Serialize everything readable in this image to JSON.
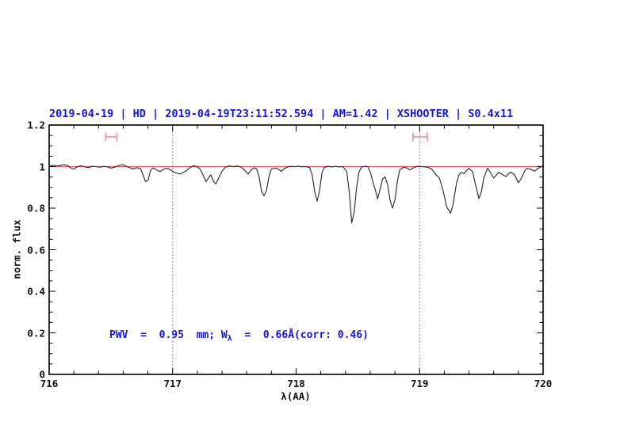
{
  "title": {
    "text": "2019-04-19 | HD | 2019-04-19T23:11:52.594 | AM=1.42 | XSHOOTER | S0.4x11",
    "color": "#1515dd"
  },
  "annotation": {
    "prefix": "PWV  =  0.95  mm; W",
    "subscript": "λ",
    "suffix": "  =  0.66Å(corr: 0.46)",
    "color": "#1515dd"
  },
  "axes": {
    "xlabel": "λ(AA)",
    "ylabel": "norm. flux",
    "x_ticks": [
      "716",
      "717",
      "718",
      "719",
      "720"
    ],
    "y_ticks": [
      "0",
      "0.2",
      "0.4",
      "0.6",
      "0.8",
      "1",
      "1.2"
    ],
    "x_minor_step": 0.2,
    "y_minor_step": 0.05
  },
  "chart_data": {
    "type": "line",
    "title": "2019-04-19 | HD | 2019-04-19T23:11:52.594 | AM=1.42 | XSHOOTER | S0.4x11",
    "xlabel": "λ(AA)",
    "ylabel": "norm. flux",
    "xlim": [
      716,
      720
    ],
    "ylim": [
      0,
      1.2
    ],
    "grid": false,
    "legend": "none",
    "colors": {
      "spectrum": "#262626",
      "continuum": "#e35d5d",
      "range_marker": "#f29a9a",
      "frame": "#000000",
      "dotted_line": "#3c3c3c"
    },
    "vlines": [
      {
        "x": 717,
        "style": "dotted"
      },
      {
        "x": 719,
        "style": "dotted"
      }
    ],
    "range_markers": {
      "y": 1.143,
      "cap_half_height": 0.021,
      "items": [
        {
          "x_min": 716.458,
          "x_max": 716.549
        },
        {
          "x_min": 718.947,
          "x_max": 719.063
        }
      ]
    },
    "series": [
      {
        "name": "continuum",
        "points": [
          [
            716.0,
            1.0
          ],
          [
            720.0,
            1.0
          ]
        ]
      },
      {
        "name": "spectrum",
        "points": [
          [
            716.0,
            1.004
          ],
          [
            716.03,
            1.006
          ],
          [
            716.06,
            1.003
          ],
          [
            716.09,
            1.006
          ],
          [
            716.12,
            1.01
          ],
          [
            716.15,
            1.005
          ],
          [
            716.18,
            0.992
          ],
          [
            716.2,
            0.988
          ],
          [
            716.23,
            1.0
          ],
          [
            716.26,
            1.004
          ],
          [
            716.29,
            0.998
          ],
          [
            716.32,
            0.995
          ],
          [
            716.35,
            1.002
          ],
          [
            716.38,
            1.0
          ],
          [
            716.41,
            0.997
          ],
          [
            716.44,
            1.001
          ],
          [
            716.47,
            0.999
          ],
          [
            716.5,
            0.993
          ],
          [
            716.53,
            0.997
          ],
          [
            716.56,
            1.004
          ],
          [
            716.59,
            1.01
          ],
          [
            716.62,
            1.003
          ],
          [
            716.65,
            0.995
          ],
          [
            716.68,
            0.989
          ],
          [
            716.71,
            0.995
          ],
          [
            716.74,
            0.99
          ],
          [
            716.76,
            0.96
          ],
          [
            716.78,
            0.928
          ],
          [
            716.8,
            0.933
          ],
          [
            716.82,
            0.98
          ],
          [
            716.84,
            0.994
          ],
          [
            716.86,
            0.988
          ],
          [
            716.88,
            0.98
          ],
          [
            716.9,
            0.977
          ],
          [
            716.92,
            0.985
          ],
          [
            716.94,
            0.99
          ],
          [
            716.96,
            0.991
          ],
          [
            716.98,
            0.985
          ],
          [
            717.0,
            0.977
          ],
          [
            717.03,
            0.969
          ],
          [
            717.06,
            0.964
          ],
          [
            717.08,
            0.97
          ],
          [
            717.11,
            0.98
          ],
          [
            717.14,
            0.995
          ],
          [
            717.17,
            1.004
          ],
          [
            717.19,
            1.002
          ],
          [
            717.22,
            0.99
          ],
          [
            717.24,
            0.968
          ],
          [
            717.27,
            0.928
          ],
          [
            717.29,
            0.945
          ],
          [
            717.31,
            0.96
          ],
          [
            717.33,
            0.93
          ],
          [
            717.35,
            0.916
          ],
          [
            717.37,
            0.942
          ],
          [
            717.4,
            0.978
          ],
          [
            717.43,
            0.998
          ],
          [
            717.46,
            1.003
          ],
          [
            717.49,
            1.0
          ],
          [
            717.52,
            1.003
          ],
          [
            717.55,
            0.999
          ],
          [
            717.58,
            0.985
          ],
          [
            717.61,
            0.964
          ],
          [
            717.63,
            0.98
          ],
          [
            717.66,
            0.995
          ],
          [
            717.68,
            0.988
          ],
          [
            717.7,
            0.952
          ],
          [
            717.72,
            0.88
          ],
          [
            717.74,
            0.86
          ],
          [
            717.76,
            0.885
          ],
          [
            717.78,
            0.95
          ],
          [
            717.8,
            0.988
          ],
          [
            717.83,
            0.993
          ],
          [
            717.85,
            0.99
          ],
          [
            717.88,
            0.977
          ],
          [
            717.9,
            0.988
          ],
          [
            717.93,
            0.998
          ],
          [
            717.96,
            1.001
          ],
          [
            717.99,
            1.0
          ],
          [
            718.02,
            1.002
          ],
          [
            718.05,
            0.999
          ],
          [
            718.08,
            1.0
          ],
          [
            718.11,
            0.995
          ],
          [
            718.13,
            0.96
          ],
          [
            718.15,
            0.88
          ],
          [
            718.17,
            0.833
          ],
          [
            718.19,
            0.885
          ],
          [
            718.21,
            0.972
          ],
          [
            718.23,
            0.997
          ],
          [
            718.26,
            1.001
          ],
          [
            718.29,
            0.998
          ],
          [
            718.32,
            1.002
          ],
          [
            718.35,
            0.998
          ],
          [
            718.38,
            1.0
          ],
          [
            718.41,
            0.975
          ],
          [
            718.43,
            0.88
          ],
          [
            718.45,
            0.729
          ],
          [
            718.47,
            0.78
          ],
          [
            718.49,
            0.9
          ],
          [
            718.51,
            0.975
          ],
          [
            718.53,
            0.998
          ],
          [
            718.56,
            1.002
          ],
          [
            718.58,
            1.0
          ],
          [
            718.6,
            0.975
          ],
          [
            718.62,
            0.93
          ],
          [
            718.64,
            0.89
          ],
          [
            718.66,
            0.845
          ],
          [
            718.68,
            0.89
          ],
          [
            718.7,
            0.94
          ],
          [
            718.72,
            0.95
          ],
          [
            718.74,
            0.915
          ],
          [
            718.76,
            0.84
          ],
          [
            718.78,
            0.8
          ],
          [
            718.8,
            0.84
          ],
          [
            718.82,
            0.93
          ],
          [
            718.84,
            0.985
          ],
          [
            718.87,
            0.997
          ],
          [
            718.9,
            0.993
          ],
          [
            718.92,
            0.984
          ],
          [
            718.95,
            0.994
          ],
          [
            718.98,
            1.002
          ],
          [
            719.01,
            1.0
          ],
          [
            719.04,
            0.999
          ],
          [
            719.07,
            0.996
          ],
          [
            719.1,
            0.987
          ],
          [
            719.13,
            0.962
          ],
          [
            719.16,
            0.945
          ],
          [
            719.19,
            0.885
          ],
          [
            719.22,
            0.805
          ],
          [
            719.25,
            0.776
          ],
          [
            719.27,
            0.815
          ],
          [
            719.3,
            0.925
          ],
          [
            719.32,
            0.962
          ],
          [
            719.34,
            0.972
          ],
          [
            719.36,
            0.966
          ],
          [
            719.38,
            0.98
          ],
          [
            719.4,
            0.992
          ],
          [
            719.43,
            0.975
          ],
          [
            719.45,
            0.92
          ],
          [
            719.48,
            0.846
          ],
          [
            719.5,
            0.878
          ],
          [
            719.52,
            0.945
          ],
          [
            719.55,
            0.992
          ],
          [
            719.57,
            0.975
          ],
          [
            719.6,
            0.945
          ],
          [
            719.62,
            0.958
          ],
          [
            719.64,
            0.973
          ],
          [
            719.67,
            0.962
          ],
          [
            719.7,
            0.952
          ],
          [
            719.72,
            0.966
          ],
          [
            719.74,
            0.973
          ],
          [
            719.77,
            0.96
          ],
          [
            719.8,
            0.922
          ],
          [
            719.82,
            0.94
          ],
          [
            719.85,
            0.978
          ],
          [
            719.87,
            0.992
          ],
          [
            719.9,
            0.987
          ],
          [
            719.93,
            0.978
          ],
          [
            719.96,
            0.992
          ],
          [
            719.99,
            1.001
          ],
          [
            720.0,
            1.003
          ]
        ]
      }
    ]
  }
}
